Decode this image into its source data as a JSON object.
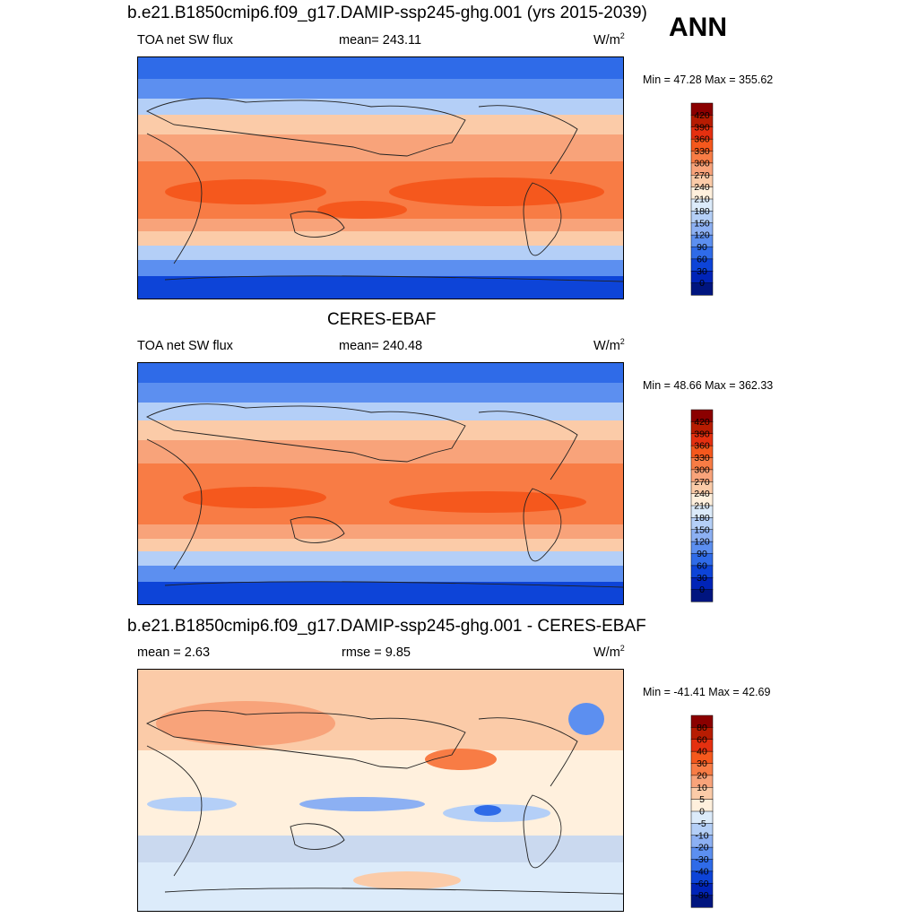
{
  "ann_label": "ANN",
  "panels": [
    {
      "id": "model",
      "title": "b.e21.B1850cmip6.f09_g17.DAMIP-ssp245-ghg.001 (yrs 2015-2039)",
      "variable": "TOA net SW flux",
      "stat_text": "mean= 243.11",
      "stat2_text": "",
      "units": "W/m",
      "units_sup": "2",
      "minmax": "Min =  47.28 Max = 355.62",
      "colorbar_labels": [
        "420",
        "390",
        "360",
        "330",
        "300",
        "270",
        "240",
        "210",
        "180",
        "150",
        "120",
        "90",
        "60",
        "30",
        "0"
      ],
      "colorbar_colors": [
        "#8b0000",
        "#b71c02",
        "#e53010",
        "#f5581d",
        "#f87c45",
        "#f8a37a",
        "#fbcba8",
        "#fff0dd",
        "#dcebfa",
        "#b4cff7",
        "#8cb0f3",
        "#5c8ff0",
        "#2f6be8",
        "#0d44d8",
        "#0024b8",
        "#00157f"
      ]
    },
    {
      "id": "obs",
      "title": "CERES-EBAF",
      "variable": "TOA net SW flux",
      "stat_text": "mean= 240.48",
      "stat2_text": "",
      "units": "W/m",
      "units_sup": "2",
      "minmax": "Min =  48.66 Max = 362.33",
      "colorbar_labels": [
        "420",
        "390",
        "360",
        "330",
        "300",
        "270",
        "240",
        "210",
        "180",
        "150",
        "120",
        "90",
        "60",
        "30",
        "0"
      ],
      "colorbar_colors": [
        "#8b0000",
        "#b71c02",
        "#e53010",
        "#f5581d",
        "#f87c45",
        "#f8a37a",
        "#fbcba8",
        "#fff0dd",
        "#dcebfa",
        "#b4cff7",
        "#8cb0f3",
        "#5c8ff0",
        "#2f6be8",
        "#0d44d8",
        "#0024b8",
        "#00157f"
      ]
    },
    {
      "id": "diff",
      "title": "b.e21.B1850cmip6.f09_g17.DAMIP-ssp245-ghg.001 - CERES-EBAF",
      "variable": "",
      "stat_text": "mean =   2.63",
      "stat2_text": "rmse =   9.85",
      "units": "W/m",
      "units_sup": "2",
      "minmax": "Min = -41.41 Max =  42.69",
      "colorbar_labels": [
        "80",
        "60",
        "40",
        "30",
        "20",
        "10",
        "5",
        "0",
        "-5",
        "-10",
        "-20",
        "-30",
        "-40",
        "-60",
        "-80"
      ],
      "colorbar_colors": [
        "#8b0000",
        "#b71c02",
        "#e53010",
        "#f5581d",
        "#f87c45",
        "#f8a37a",
        "#fbcba8",
        "#fff0dd",
        "#dcebfa",
        "#b4cff7",
        "#8cb0f3",
        "#5c8ff0",
        "#2f6be8",
        "#0d44d8",
        "#0024b8",
        "#00157f"
      ]
    }
  ]
}
